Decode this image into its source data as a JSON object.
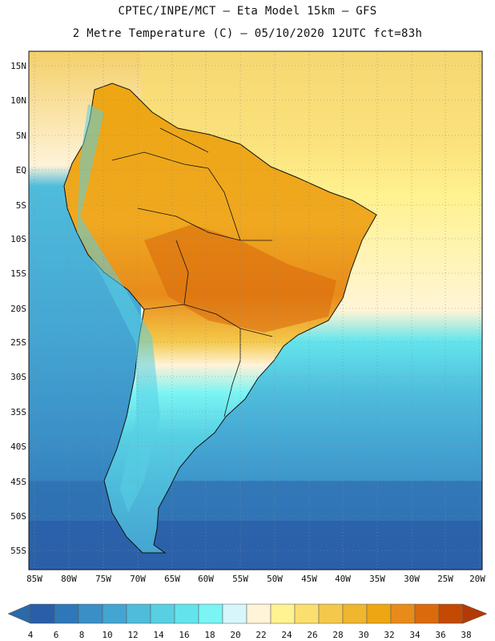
{
  "header": {
    "line1": "CPTEC/INPE/MCT –  Eta Model 15km – GFS",
    "line2": "2 Metre Temperature (C) – 05/10/2020 12UTC fct=83h"
  },
  "map": {
    "lat_labels": [
      "15N",
      "10N",
      "5N",
      "EQ",
      "5S",
      "10S",
      "15S",
      "20S",
      "25S",
      "30S",
      "35S",
      "40S",
      "45S",
      "50S",
      "55S"
    ],
    "lon_labels": [
      "85W",
      "80W",
      "75W",
      "70W",
      "65W",
      "60W",
      "55W",
      "50W",
      "45W",
      "40W",
      "35W",
      "30W",
      "25W",
      "20W"
    ]
  },
  "legend": {
    "values": [
      "4",
      "6",
      "8",
      "10",
      "12",
      "14",
      "16",
      "18",
      "20",
      "22",
      "24",
      "26",
      "28",
      "30",
      "32",
      "34",
      "36",
      "38"
    ],
    "colors": [
      "#2b5ea8",
      "#2f77b8",
      "#3b8fc7",
      "#44a5d2",
      "#4fbcdc",
      "#57d0e3",
      "#63e4ec",
      "#7af4f4",
      "#d6f6fb",
      "#fff3d8",
      "#fff290",
      "#fbdf6e",
      "#f4c84a",
      "#efb62e",
      "#eea612",
      "#e88b1a",
      "#db6a0c",
      "#c44a04"
    ],
    "under_color": "#2b6aa8",
    "over_color": "#b23a06"
  }
}
